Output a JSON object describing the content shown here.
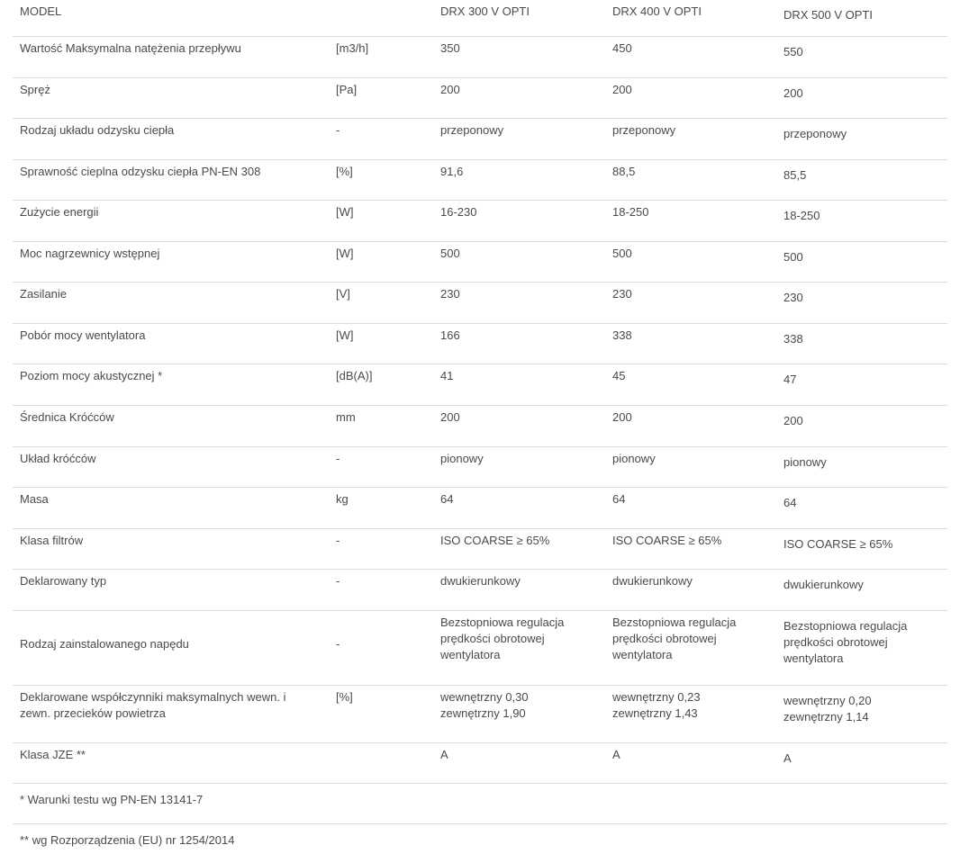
{
  "header": {
    "label": "MODEL",
    "unit": "",
    "models": [
      "DRX 300 V OPTI",
      "DRX 400 V OPTI",
      "DRX 500 V OPTI"
    ]
  },
  "rows": [
    {
      "label": "Wartość Maksymalna natężenia przepływu",
      "unit": "[m3/h]",
      "values": [
        "350",
        "450",
        "550"
      ]
    },
    {
      "label": "Spręż",
      "unit": "[Pa]",
      "values": [
        "200",
        "200",
        "200"
      ]
    },
    {
      "label": "Rodzaj układu odzysku ciepła",
      "unit": "-",
      "values": [
        "przeponowy",
        "przeponowy",
        "przeponowy"
      ]
    },
    {
      "label": "Sprawność cieplna odzysku ciepła PN-EN 308",
      "unit": "[%]",
      "values": [
        "91,6",
        "88,5",
        "85,5"
      ]
    },
    {
      "label": "Zużycie energii",
      "unit": "[W]",
      "values": [
        "16-230",
        "18-250",
        "18-250"
      ]
    },
    {
      "label": "Moc nagrzewnicy wstępnej",
      "unit": "[W]",
      "values": [
        "500",
        "500",
        "500"
      ]
    },
    {
      "label": "Zasilanie",
      "unit": "[V]",
      "values": [
        "230",
        "230",
        "230"
      ]
    },
    {
      "label": "Pobór mocy wentylatora",
      "unit": "[W]",
      "values": [
        "166",
        "338",
        "338"
      ]
    },
    {
      "label": "Poziom mocy akustycznej *",
      "unit": "[dB(A)]",
      "values": [
        "41",
        "45",
        "47"
      ]
    },
    {
      "label": "Średnica Króćców",
      "unit": "mm",
      "values": [
        "200",
        "200",
        "200"
      ]
    },
    {
      "label": "Układ króćców",
      "unit": "-",
      "values": [
        "pionowy",
        "pionowy",
        "pionowy"
      ]
    },
    {
      "label": "Masa",
      "unit": "kg",
      "values": [
        "64",
        "64",
        "64"
      ]
    },
    {
      "label": "Klasa filtrów",
      "unit": "-",
      "values": [
        "ISO COARSE ≥ 65%",
        "ISO COARSE ≥ 65%",
        "ISO COARSE ≥ 65%"
      ]
    },
    {
      "label": "Deklarowany  typ",
      "unit": "-",
      "values": [
        "dwukierunkowy",
        "dwukierunkowy",
        "dwukierunkowy"
      ]
    },
    {
      "label": "Rodzaj zainstalowanego napędu",
      "unit": "-",
      "values": [
        "Bezstopniowa regulacja\nprędkości obrotowej\nwentylatora",
        "Bezstopniowa regulacja\nprędkości obrotowej\nwentylatora",
        "Bezstopniowa regulacja\nprędkości obrotowej\nwentylatora"
      ]
    },
    {
      "label": "Deklarowane współczynniki maksymalnych wewn. i\nzewn. przecieków powietrza",
      "unit": "[%]",
      "values": [
        "wewnętrzny  0,30\nzewnętrzny   1,90",
        "wewnętrzny   0,23\nzewnętrzny    1,43",
        "wewnętrzny   0,20\nzewnętrzny    1,14"
      ]
    },
    {
      "label": "Klasa  JZE **",
      "unit": "",
      "values": [
        "A",
        "A",
        "A"
      ]
    }
  ],
  "footnotes": [
    "*  Warunki testu wg PN-EN 13141-7",
    "**  wg Rozporządzenia (EU) nr 1254/2014"
  ]
}
